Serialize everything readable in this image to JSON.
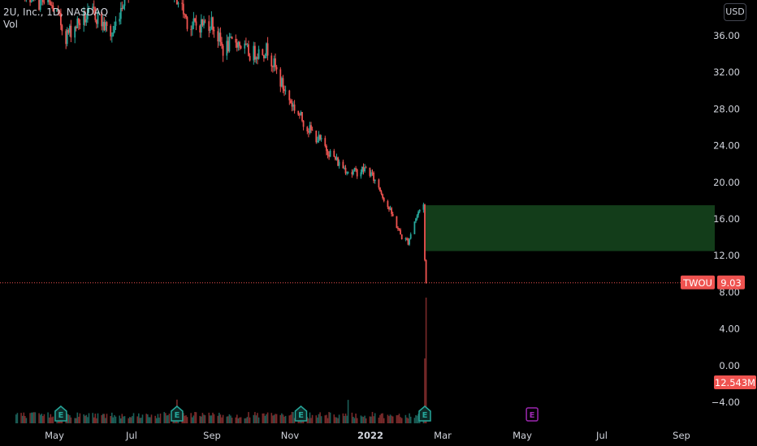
{
  "legend": {
    "title": "2U, Inc., 1D, NASDAQ",
    "volume_label": "Vol"
  },
  "currency": "USD",
  "chart_data": {
    "type": "candlestick",
    "symbol": "TWOU",
    "y_axis_ticks": [
      36,
      32,
      28,
      24,
      20,
      16,
      12,
      8,
      4,
      0,
      -4
    ],
    "y_tick_labels": [
      "36.00",
      "32.00",
      "28.00",
      "24.00",
      "20.00",
      "16.00",
      "12.00",
      "8.00",
      "4.00",
      "0.00",
      "−4.00"
    ],
    "x_tick_labels": [
      "May",
      "Jul",
      "Sep",
      "Nov",
      "2022",
      "Mar",
      "May",
      "Jul",
      "Sep"
    ],
    "price_path": [
      {
        "date": "2021-04-01",
        "price": 42.5
      },
      {
        "date": "2021-04-15",
        "price": 40.0
      },
      {
        "date": "2021-05-01",
        "price": 39.0
      },
      {
        "date": "2021-05-10",
        "price": 36.0
      },
      {
        "date": "2021-05-20",
        "price": 37.5
      },
      {
        "date": "2021-06-01",
        "price": 38.5
      },
      {
        "date": "2021-06-15",
        "price": 36.0
      },
      {
        "date": "2021-06-25",
        "price": 40.5
      },
      {
        "date": "2021-07-01",
        "price": 42.0
      },
      {
        "date": "2021-07-20",
        "price": 42.0
      },
      {
        "date": "2021-08-01",
        "price": 41.5
      },
      {
        "date": "2021-08-15",
        "price": 37.0
      },
      {
        "date": "2021-09-01",
        "price": 37.5
      },
      {
        "date": "2021-09-10",
        "price": 34.5
      },
      {
        "date": "2021-09-20",
        "price": 35.5
      },
      {
        "date": "2021-10-01",
        "price": 34.0
      },
      {
        "date": "2021-10-15",
        "price": 34.5
      },
      {
        "date": "2021-10-25",
        "price": 31.0
      },
      {
        "date": "2021-11-01",
        "price": 29.0
      },
      {
        "date": "2021-11-15",
        "price": 26.0
      },
      {
        "date": "2021-11-25",
        "price": 24.5
      },
      {
        "date": "2021-12-01",
        "price": 23.5
      },
      {
        "date": "2021-12-10",
        "price": 22.0
      },
      {
        "date": "2021-12-20",
        "price": 21.0
      },
      {
        "date": "2022-01-01",
        "price": 21.5
      },
      {
        "date": "2022-01-10",
        "price": 19.5
      },
      {
        "date": "2022-01-20",
        "price": 16.5
      },
      {
        "date": "2022-01-28",
        "price": 14.0
      },
      {
        "date": "2022-02-02",
        "price": 13.5
      },
      {
        "date": "2022-02-07",
        "price": 15.8
      },
      {
        "date": "2022-02-11",
        "price": 17.0
      },
      {
        "date": "2022-02-14",
        "price": 17.8
      },
      {
        "date": "2022-02-15",
        "price": 11.5
      },
      {
        "date": "2022-02-16",
        "price": 9.03
      }
    ],
    "last_price": {
      "symbol": "TWOU",
      "price": 9.03,
      "label": "9.03"
    },
    "volume_label": "12.543M",
    "highlight_zone": {
      "date_start": "2022-02-15",
      "date_end": "2022-09-30",
      "price_low": 12.5,
      "price_high": 17.5,
      "color": "#133d1a"
    },
    "earnings_markers": [
      {
        "date": "2021-05-06",
        "type": "past",
        "label": "E"
      },
      {
        "date": "2021-08-05",
        "type": "past",
        "label": "E"
      },
      {
        "date": "2021-11-10",
        "type": "past",
        "label": "E"
      },
      {
        "date": "2022-02-15",
        "type": "past",
        "label": "E"
      },
      {
        "date": "2022-05-10",
        "type": "upcoming",
        "label": "E"
      }
    ],
    "colors": {
      "up": "#26a69a",
      "down": "#ef5350",
      "earnings_past": "#26a69a",
      "earnings_upcoming": "#9c27b0"
    }
  }
}
